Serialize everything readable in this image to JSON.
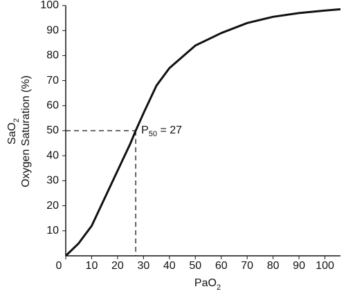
{
  "chart_data": {
    "type": "line",
    "x_label": {
      "text": "PaO",
      "sub": "2"
    },
    "y_label": {
      "line1": {
        "text": "SaO",
        "sub": "2"
      },
      "line2": "Oxygen Saturation (%)"
    },
    "x": [
      0,
      5,
      10,
      15,
      20,
      25,
      27,
      30,
      35,
      40,
      50,
      60,
      70,
      80,
      90,
      100,
      106
    ],
    "series": [
      {
        "color": "#111111",
        "values": [
          0,
          5,
          12,
          23,
          34,
          45,
          50,
          57,
          68,
          75,
          84,
          89,
          93,
          95.5,
          97,
          98,
          98.5
        ]
      }
    ],
    "xlim": [
      0,
      106
    ],
    "ylim": [
      0,
      100
    ],
    "xticks": [
      0,
      10,
      20,
      30,
      40,
      50,
      60,
      70,
      80,
      90,
      100
    ],
    "yticks": [
      10,
      20,
      30,
      40,
      50,
      60,
      70,
      80,
      90,
      100
    ],
    "grid": false,
    "p50": {
      "x": 27,
      "y": 50,
      "label": {
        "text": "P",
        "sub": "50",
        "rest": " = 27"
      }
    }
  }
}
